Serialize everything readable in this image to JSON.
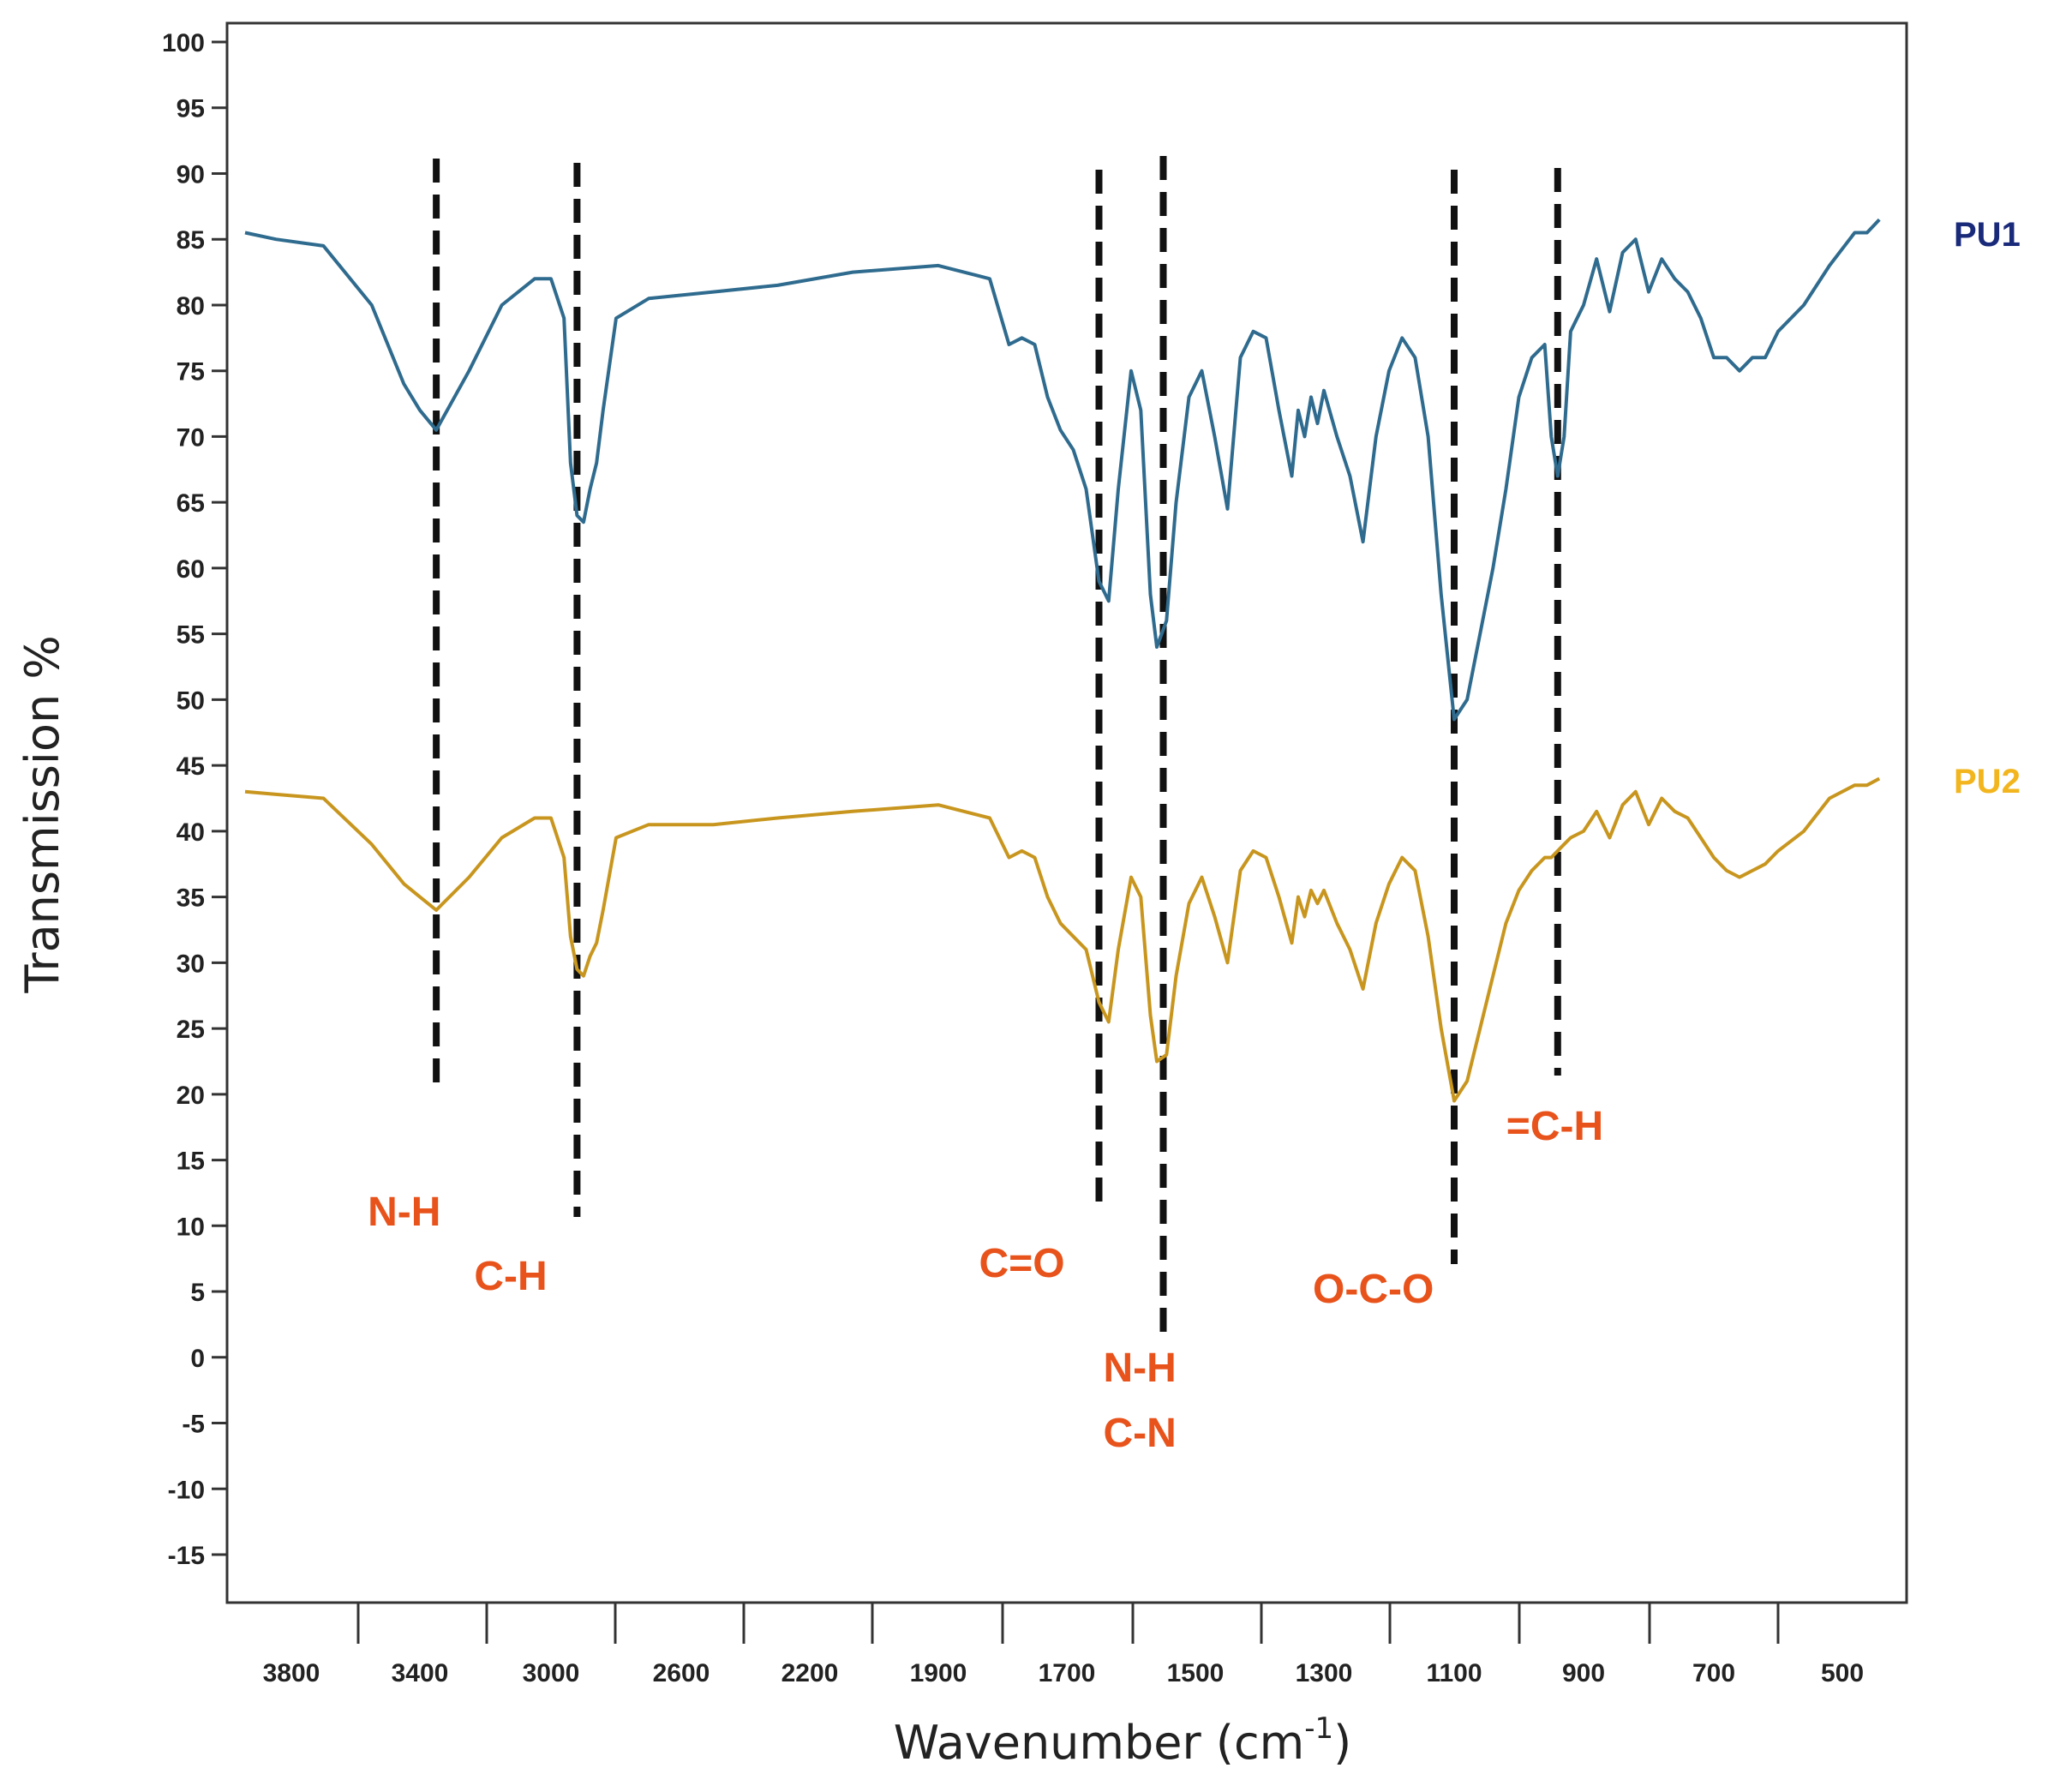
{
  "chart_data": {
    "type": "line",
    "title": "",
    "xlabel": "Wavenumber (cm",
    "xlabel_sup": "-1",
    "xlabel_close": ")",
    "ylabel": "Transmission %",
    "ylim": [
      -20,
      100
    ],
    "xlim_note": "reversed, non-linear wavenumber axis",
    "y_ticks": [
      100,
      95,
      90,
      85,
      80,
      75,
      70,
      65,
      60,
      55,
      50,
      45,
      40,
      35,
      30,
      25,
      20,
      15,
      10,
      5,
      0,
      -5,
      -10,
      -15
    ],
    "x_ticks": [
      "3800",
      "3400",
      "3000",
      "2600",
      "2200",
      "1900",
      "1700",
      "1500",
      "1300",
      "1100",
      "900",
      "700",
      "500"
    ],
    "x_tick_values": [
      3800,
      3400,
      3000,
      2600,
      2200,
      1900,
      1700,
      1500,
      1300,
      1100,
      900,
      700,
      500
    ],
    "colors": {
      "PU1": "#2f6b8e",
      "PU2": "#c8961e",
      "band": "#e8531c",
      "legend_PU1": "#1a2a7a",
      "legend_PU2": "#f2b51e"
    },
    "series": [
      {
        "name": "PU1",
        "x": [
          3950,
          3850,
          3700,
          3550,
          3450,
          3400,
          3350,
          3250,
          3150,
          3050,
          3000,
          2960,
          2940,
          2920,
          2900,
          2880,
          2860,
          2840,
          2800,
          2700,
          2500,
          2300,
          2100,
          1900,
          1820,
          1790,
          1770,
          1750,
          1730,
          1710,
          1690,
          1670,
          1650,
          1635,
          1620,
          1600,
          1585,
          1570,
          1560,
          1545,
          1530,
          1510,
          1490,
          1470,
          1450,
          1430,
          1410,
          1390,
          1370,
          1350,
          1340,
          1330,
          1320,
          1310,
          1300,
          1280,
          1260,
          1240,
          1220,
          1200,
          1180,
          1160,
          1140,
          1120,
          1100,
          1080,
          1060,
          1040,
          1020,
          1000,
          980,
          960,
          950,
          940,
          930,
          920,
          900,
          880,
          860,
          840,
          820,
          800,
          780,
          760,
          740,
          720,
          700,
          680,
          660,
          640,
          620,
          600,
          560,
          520,
          480,
          460,
          440
        ],
        "y": [
          85.5,
          85,
          84.5,
          80,
          74,
          72,
          70.5,
          75,
          80,
          82,
          82,
          79,
          68,
          64,
          63.5,
          66,
          68,
          72,
          79,
          80.5,
          81,
          81.5,
          82.5,
          83,
          82,
          77,
          77.5,
          77,
          73,
          70.5,
          69,
          66,
          59,
          57.5,
          66,
          75,
          72,
          58,
          54,
          56,
          65,
          73,
          75,
          70,
          64.5,
          76,
          78,
          77.5,
          72,
          67,
          72,
          70,
          73,
          71,
          73.5,
          70,
          67,
          62,
          70,
          75,
          77.5,
          76,
          70,
          58,
          48.5,
          50,
          55,
          60,
          66,
          73,
          76,
          77,
          70,
          67,
          70,
          78,
          80,
          83.5,
          79.5,
          84,
          85,
          81,
          83.5,
          82,
          81,
          79,
          76,
          76,
          75,
          76,
          76,
          78,
          80,
          83,
          85.5,
          85.5,
          86.5
        ]
      },
      {
        "name": "PU2",
        "x": [
          3950,
          3850,
          3700,
          3550,
          3450,
          3400,
          3350,
          3250,
          3150,
          3050,
          3000,
          2960,
          2940,
          2920,
          2900,
          2880,
          2860,
          2840,
          2800,
          2700,
          2500,
          2300,
          2100,
          1900,
          1820,
          1790,
          1770,
          1750,
          1730,
          1710,
          1690,
          1670,
          1650,
          1635,
          1620,
          1600,
          1585,
          1570,
          1560,
          1545,
          1530,
          1510,
          1490,
          1470,
          1450,
          1430,
          1410,
          1390,
          1370,
          1350,
          1340,
          1330,
          1320,
          1310,
          1300,
          1280,
          1260,
          1240,
          1220,
          1200,
          1180,
          1160,
          1140,
          1120,
          1100,
          1080,
          1060,
          1040,
          1020,
          1000,
          980,
          960,
          950,
          940,
          930,
          920,
          900,
          880,
          860,
          840,
          820,
          800,
          780,
          760,
          740,
          720,
          700,
          680,
          660,
          640,
          620,
          600,
          560,
          520,
          480,
          460,
          440
        ],
        "y": [
          43,
          42.8,
          42.5,
          39,
          36,
          35,
          34,
          36.5,
          39.5,
          41,
          41,
          38,
          32,
          29.5,
          29,
          30.5,
          31.5,
          34,
          39.5,
          40.5,
          40.5,
          41,
          41.5,
          42,
          41,
          38,
          38.5,
          38,
          35,
          33,
          32,
          31,
          27,
          25.5,
          31,
          36.5,
          35,
          26,
          22.5,
          23,
          29,
          34.5,
          36.5,
          33.5,
          30,
          37,
          38.5,
          38,
          35,
          31.5,
          35,
          33.5,
          35.5,
          34.5,
          35.5,
          33,
          31,
          28,
          33,
          36,
          38,
          37,
          32,
          25,
          19.5,
          21,
          25,
          29,
          33,
          35.5,
          37,
          38,
          38,
          38.5,
          39,
          39.5,
          40,
          41.5,
          39.5,
          42,
          43,
          40.5,
          42.5,
          41.5,
          41,
          39.5,
          38,
          37,
          36.5,
          37,
          37.5,
          38.5,
          40,
          42.5,
          43.5,
          43.5,
          44
        ]
      }
    ],
    "band_markers": [
      {
        "x": 3350,
        "label": "N-H"
      },
      {
        "x": 2920,
        "label": "C-H"
      },
      {
        "x": 1650,
        "label": "C=O"
      },
      {
        "x": 1550,
        "label": "N-H",
        "label2": "C-N"
      },
      {
        "x": 1100,
        "label": "O-C-O"
      },
      {
        "x": 940,
        "label": "=C-H"
      }
    ],
    "legend": [
      {
        "name": "PU1"
      },
      {
        "name": "PU2"
      }
    ]
  }
}
